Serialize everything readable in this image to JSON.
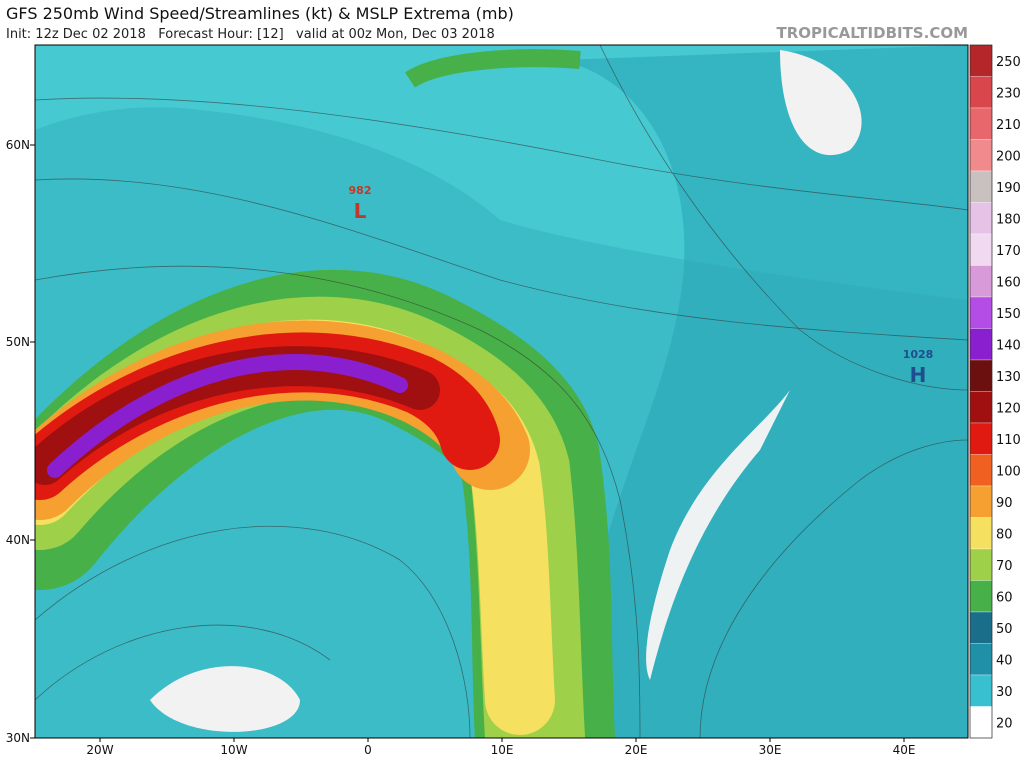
{
  "header": {
    "title": "GFS 250mb Wind Speed/Streamlines (kt) & MSLP Extrema (mb)",
    "subtitle": "Init: 12z Dec 02 2018   Forecast Hour: [12]   valid at 00z Mon, Dec 03 2018",
    "watermark": "TROPICALTIDBITS.COM"
  },
  "map": {
    "lat_labels": [
      "60N",
      "50N",
      "40N",
      "30N"
    ],
    "lon_labels": [
      "20W",
      "10W",
      "0",
      "10E",
      "20E",
      "30E",
      "40E"
    ],
    "extrema": [
      {
        "value": "982",
        "symbol": "L",
        "color": "#c0392b"
      },
      {
        "value": "1028",
        "symbol": "H",
        "color": "#1f4e8c"
      }
    ]
  },
  "colorbar": {
    "labels": [
      "250",
      "230",
      "210",
      "200",
      "190",
      "180",
      "170",
      "160",
      "150",
      "140",
      "130",
      "120",
      "110",
      "100",
      "90",
      "80",
      "70",
      "60",
      "50",
      "40",
      "30",
      "20"
    ],
    "colors": [
      "#b5262b",
      "#d9474d",
      "#e8676c",
      "#f08a8d",
      "#c9c0c0",
      "#e6c3e6",
      "#f2d9f2",
      "#d99ad9",
      "#b34de6",
      "#8a1fd0",
      "#6b0f0f",
      "#a01010",
      "#e01a10",
      "#f06020",
      "#f5a030",
      "#f5e060",
      "#9ed04a",
      "#48b048",
      "#1a6e8a",
      "#2090a8",
      "#38c0d0",
      "#ffffff"
    ]
  }
}
